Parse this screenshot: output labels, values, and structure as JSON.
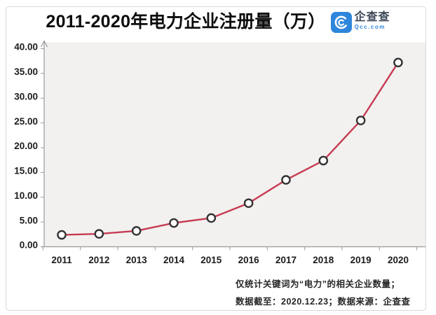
{
  "title": "2011-2020年电力企业注册量（万）",
  "logo": {
    "name": "企查查",
    "domain": "Qcc.com",
    "icon": "qichacha-swirl-icon",
    "icon_color": "#2e86dc"
  },
  "footnote": {
    "line1": "仅统计关键词为“电力”的相关企业数量；",
    "line2": "数据截至：2020.12.23；数据来源：企查查"
  },
  "chart_data": {
    "type": "line",
    "title": "2011-2020年电力企业注册量（万）",
    "categories": [
      "2011",
      "2012",
      "2013",
      "2014",
      "2015",
      "2016",
      "2017",
      "2018",
      "2019",
      "2020"
    ],
    "values": [
      2.4,
      2.6,
      3.2,
      4.8,
      5.8,
      8.8,
      13.5,
      17.4,
      25.5,
      37.2
    ],
    "xlabel": "",
    "ylabel": "",
    "ylim": [
      0,
      40
    ],
    "ytick_step": 5,
    "ytick_labels": [
      "0.00",
      "5.00",
      "10.00",
      "15.00",
      "20.00",
      "25.00",
      "30.00",
      "35.00",
      "40.00"
    ],
    "grid": false,
    "legend": "none",
    "line_color": "#c73a53",
    "marker": "open-circle",
    "marker_fill": "#ffffff",
    "marker_stroke": "#333333",
    "plot_bg": "#f2f1ef",
    "axis_color": "#9a9a9a"
  }
}
